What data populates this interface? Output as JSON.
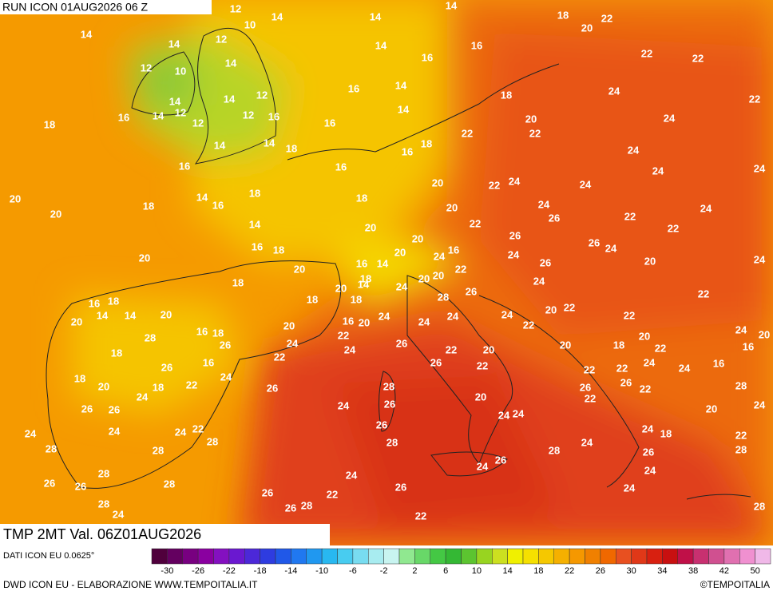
{
  "header": {
    "run": "RUN ICON 01AUG2026 06 Z",
    "title": "TMP 2MT Val. 06Z01AUG2026",
    "source": "DATI ICON EU 0.0625°",
    "footer": "DWD ICON EU - ELABORAZIONE WWW.TEMPOITALIA.IT",
    "copyright": "©TEMPOITALIA"
  },
  "scale": {
    "ticks": [
      -30,
      -26,
      -22,
      -18,
      -14,
      -10,
      -6,
      -2,
      2,
      6,
      10,
      14,
      18,
      22,
      26,
      30,
      34,
      38,
      42,
      50
    ]
  },
  "map": {
    "labels": [
      12,
      14,
      14,
      14,
      18,
      22,
      14,
      10,
      12,
      14,
      14,
      16,
      16,
      20,
      22,
      22,
      12,
      10,
      14,
      14,
      12,
      14,
      16,
      14,
      18,
      24,
      22,
      18,
      16,
      14,
      12,
      12,
      12,
      16,
      16,
      14,
      20,
      22,
      22,
      24,
      14,
      14,
      18,
      16,
      18,
      24,
      16,
      16,
      24,
      24,
      20,
      22,
      24,
      24,
      20,
      14,
      18,
      18,
      16,
      20,
      18,
      20,
      24,
      24,
      26,
      22,
      14,
      20,
      22,
      22,
      26,
      20,
      26,
      24,
      16,
      18,
      16,
      20,
      16,
      14,
      20,
      24,
      24,
      26,
      20,
      24,
      20,
      20,
      20,
      22,
      18,
      24,
      24,
      18,
      20,
      14,
      26,
      28,
      18,
      18,
      22,
      16,
      18,
      20,
      22,
      20,
      14,
      14,
      20,
      24,
      24,
      16,
      20,
      20,
      24,
      24,
      22,
      22,
      16,
      18,
      24,
      20,
      20,
      24,
      22,
      28,
      26,
      20,
      18,
      22,
      16,
      18,
      26,
      24,
      22,
      22,
      20,
      16,
      26,
      26,
      22,
      22,
      22,
      24,
      24,
      16,
      18,
      20,
      18,
      22,
      24,
      26,
      26,
      28,
      26,
      22,
      28,
      24,
      20,
      22,
      26,
      26,
      24,
      26,
      24,
      24,
      20,
      24,
      22,
      24,
      24,
      26,
      24,
      18,
      22,
      24,
      28,
      28,
      28,
      24,
      28,
      28,
      28,
      26,
      26,
      24,
      28,
      24,
      24,
      26,
      26,
      28,
      26,
      24,
      26,
      22,
      28,
      26,
      28,
      24,
      28,
      22
    ]
  }
}
